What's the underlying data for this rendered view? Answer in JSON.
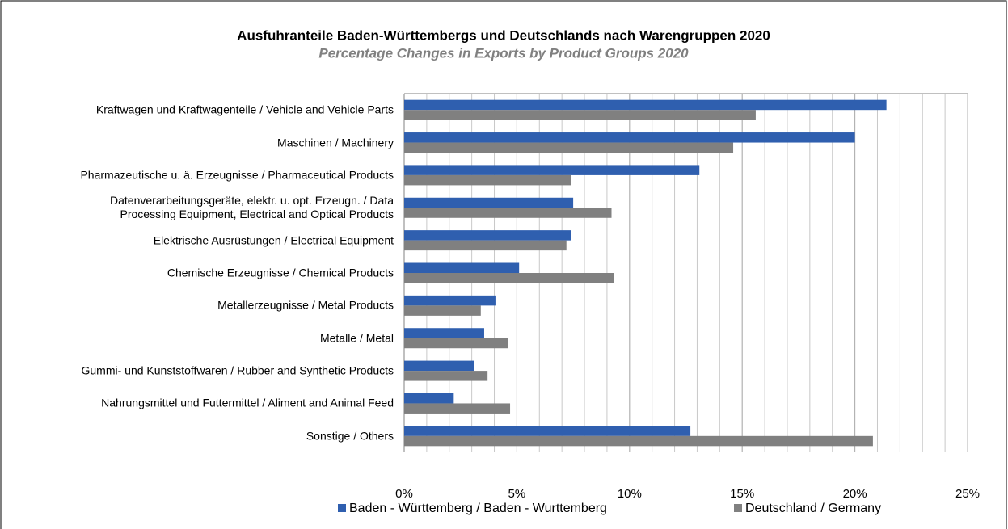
{
  "chart_data": {
    "type": "hbar",
    "title": "Ausfuhranteile Baden-Württembergs und Deutschlands nach Warengruppen 2020",
    "subtitle": "Percentage Changes in Exports by Product Groups 2020",
    "categories": [
      "Kraftwagen und Kraftwagenteile / Vehicle and Vehicle Parts",
      "Maschinen / Machinery",
      "Pharmazeutische u. ä. Erzeugnisse / Pharmaceutical Products",
      "Datenverarbeitungsgeräte, elektr. u. opt. Erzeugn. / Data\nProcessing Equipment, Electrical and Optical Products",
      "Elektrische Ausrüstungen / Electrical Equipment",
      "Chemische Erzeugnisse / Chemical Products",
      "Metallerzeugnisse / Metal Products",
      "Metalle / Metal",
      "Gummi- und Kunststoffwaren / Rubber and Synthetic Products",
      "Nahrungsmittel und Futtermittel / Aliment and Animal Feed",
      "Sonstige / Others"
    ],
    "series": [
      {
        "name": "Baden - Württemberg / Baden - Wurttemberg",
        "color": "#2f5faf",
        "values": [
          21.4,
          20.0,
          13.1,
          7.5,
          7.4,
          5.1,
          4.05,
          3.55,
          3.1,
          2.2,
          12.7
        ]
      },
      {
        "name": "Deutschland / Germany",
        "color": "#808080",
        "values": [
          15.6,
          14.6,
          7.4,
          9.2,
          7.2,
          9.3,
          3.4,
          4.6,
          3.7,
          4.7,
          20.8
        ]
      }
    ],
    "xlim": [
      0,
      25
    ],
    "xticks": [
      {
        "value": 0,
        "label": "0%"
      },
      {
        "value": 5,
        "label": "5%"
      },
      {
        "value": 10,
        "label": "10%"
      },
      {
        "value": 15,
        "label": "15%"
      },
      {
        "value": 20,
        "label": "20%"
      },
      {
        "value": 25,
        "label": "25%"
      }
    ],
    "minor_grid_step": 1,
    "grid": true,
    "legend": "bottom"
  }
}
